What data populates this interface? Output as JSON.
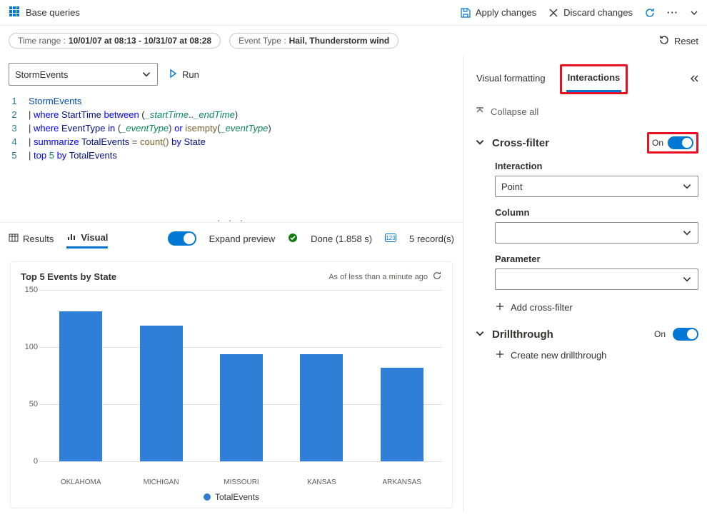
{
  "topbar": {
    "base_queries": "Base queries",
    "apply": "Apply changes",
    "discard": "Discard changes"
  },
  "filters": {
    "time_label": "Time range :",
    "time_value": "10/01/07 at 08:13 - 10/31/07 at 08:28",
    "event_label": "Event Type :",
    "event_value": "Hail, Thunderstorm wind",
    "reset": "Reset"
  },
  "query_header": {
    "table": "StormEvents",
    "run": "Run"
  },
  "code": {
    "lines": [
      "1",
      "2",
      "3",
      "4",
      "5"
    ],
    "l1_table": "StormEvents",
    "l2_key": "where",
    "l2_col": "StartTime",
    "l2_btw": "between",
    "l2_v1": "_startTime",
    "l2_v2": "_endTime",
    "l3_key": "where",
    "l3_col": "EventType",
    "l3_in": "in",
    "l3_v1": "_eventType",
    "l3_or": "or",
    "l3_fn": "isempty",
    "l3_v2": "_eventType",
    "l4_key": "summarize",
    "l4_col": "TotalEvents",
    "l4_fn": "count()",
    "l4_by": "by",
    "l4_grp": "State",
    "l5_key": "top",
    "l5_n": "5",
    "l5_by": "by",
    "l5_col": "TotalEvents"
  },
  "results": {
    "tab_results": "Results",
    "tab_visual": "Visual",
    "expand": "Expand preview",
    "done": "Done (1.858 s)",
    "records": "5 record(s)"
  },
  "chart": {
    "type": "bar",
    "title": "Top 5 Events by State",
    "subtitle": "As of less than a minute ago",
    "ylim": [
      0,
      150
    ],
    "yticks": [
      0,
      50,
      100,
      150
    ],
    "categories": [
      "OKLAHOMA",
      "MICHIGAN",
      "MISSOURI",
      "KANSAS",
      "ARKANSAS"
    ],
    "values": [
      131,
      119,
      94,
      94,
      82
    ],
    "bar_color": "#2f7ed8",
    "grid_color": "#e1dfdd",
    "legend": "TotalEvents"
  },
  "panel": {
    "tab_visual_fmt": "Visual formatting",
    "tab_interactions": "Interactions",
    "collapse_all": "Collapse all",
    "crossfilter": {
      "title": "Cross-filter",
      "on": "On",
      "interaction_label": "Interaction",
      "interaction_value": "Point",
      "column_label": "Column",
      "column_value": "",
      "parameter_label": "Parameter",
      "parameter_value": "",
      "add": "Add cross-filter"
    },
    "drill": {
      "title": "Drillthrough",
      "on": "On",
      "create": "Create new drillthrough"
    }
  }
}
